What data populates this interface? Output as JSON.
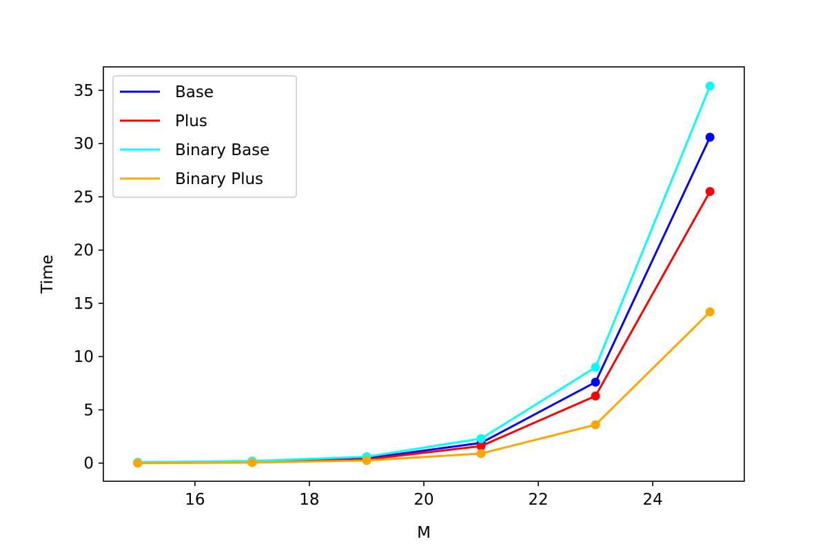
{
  "chart_data": {
    "type": "line",
    "title": "",
    "xlabel": "M",
    "ylabel": "Time",
    "xlim": [
      14.4,
      25.6
    ],
    "ylim": [
      -1.7,
      37.2
    ],
    "x_ticks": [
      "16",
      "18",
      "20",
      "22",
      "24"
    ],
    "y_ticks": [
      "0",
      "5",
      "10",
      "15",
      "20",
      "25",
      "30",
      "35"
    ],
    "grid": false,
    "legend_position": "upper left",
    "x": [
      15,
      17,
      19,
      21,
      23,
      25
    ],
    "series": [
      {
        "name": "Base",
        "color": "#0000ff",
        "values": [
          0.05,
          0.15,
          0.45,
          1.9,
          7.6,
          30.6
        ]
      },
      {
        "name": "Plus",
        "color": "#ff0000",
        "values": [
          0.03,
          0.1,
          0.35,
          1.6,
          6.3,
          25.5
        ]
      },
      {
        "name": "Binary Base",
        "color": "#00ffff",
        "values": [
          0.08,
          0.2,
          0.6,
          2.3,
          9.0,
          35.4
        ]
      },
      {
        "name": "Binary Plus",
        "color": "#ffa500",
        "values": [
          0.0,
          0.05,
          0.25,
          0.9,
          3.6,
          14.2
        ]
      }
    ]
  }
}
